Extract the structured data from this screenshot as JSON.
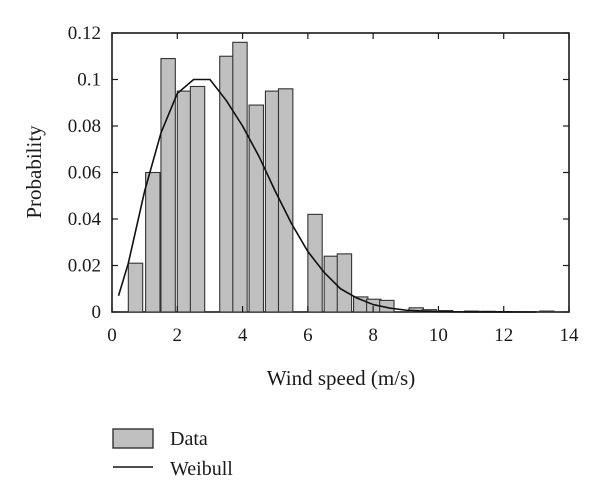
{
  "chart_data": {
    "type": "bar",
    "xlabel": "Wind speed (m/s)",
    "ylabel": "Probability",
    "xlim": [
      0,
      14
    ],
    "ylim": [
      0,
      0.12
    ],
    "x_ticks": [
      0,
      2,
      4,
      6,
      8,
      10,
      12,
      14
    ],
    "x_tick_labels": [
      "0",
      "2",
      "4",
      "6",
      "8",
      "10",
      "12",
      "14"
    ],
    "y_ticks": [
      0,
      0.02,
      0.04,
      0.06,
      0.08,
      0.1,
      0.12
    ],
    "y_tick_labels": [
      "0",
      "0.02",
      "0.04",
      "0.06",
      "0.08",
      "0.1",
      "0.12"
    ],
    "grid": false,
    "legend_position": "bottom-left, below plot",
    "bar_width": 0.44,
    "series": [
      {
        "name": "Data",
        "type": "bar",
        "color": "#c0c0c0",
        "points": [
          {
            "x": 0.72,
            "y": 0.021
          },
          {
            "x": 1.25,
            "y": 0.06
          },
          {
            "x": 1.72,
            "y": 0.109
          },
          {
            "x": 2.22,
            "y": 0.095
          },
          {
            "x": 2.62,
            "y": 0.097
          },
          {
            "x": 3.52,
            "y": 0.11
          },
          {
            "x": 3.92,
            "y": 0.116
          },
          {
            "x": 4.42,
            "y": 0.089
          },
          {
            "x": 4.92,
            "y": 0.095
          },
          {
            "x": 5.32,
            "y": 0.096
          },
          {
            "x": 6.22,
            "y": 0.042
          },
          {
            "x": 6.72,
            "y": 0.024
          },
          {
            "x": 7.12,
            "y": 0.025
          },
          {
            "x": 7.62,
            "y": 0.0065
          },
          {
            "x": 8.02,
            "y": 0.0055
          },
          {
            "x": 8.42,
            "y": 0.005
          },
          {
            "x": 9.32,
            "y": 0.0018
          },
          {
            "x": 9.72,
            "y": 0.001
          },
          {
            "x": 10.22,
            "y": 0.0006
          },
          {
            "x": 11.02,
            "y": 0.0004
          },
          {
            "x": 11.52,
            "y": 0.0003
          },
          {
            "x": 12.02,
            "y": 0.0002
          },
          {
            "x": 13.32,
            "y": 0.0004
          }
        ]
      },
      {
        "name": "Weibull",
        "type": "line",
        "color": "#111111",
        "x": [
          0.2,
          0.5,
          1.0,
          1.5,
          2.0,
          2.5,
          3.0,
          3.5,
          4.0,
          4.5,
          5.0,
          5.5,
          6.0,
          6.5,
          7.0,
          7.5,
          8.0,
          8.5,
          9.0,
          9.5,
          10.0,
          10.5,
          11.0,
          12.0,
          13.0
        ],
        "y": [
          0.007,
          0.021,
          0.052,
          0.077,
          0.094,
          0.1,
          0.1,
          0.091,
          0.08,
          0.067,
          0.052,
          0.038,
          0.026,
          0.017,
          0.01,
          0.006,
          0.0032,
          0.0017,
          0.0008,
          0.0004,
          0.0002,
          0.0001,
          4e-05,
          1e-05,
          0.0
        ]
      }
    ]
  }
}
